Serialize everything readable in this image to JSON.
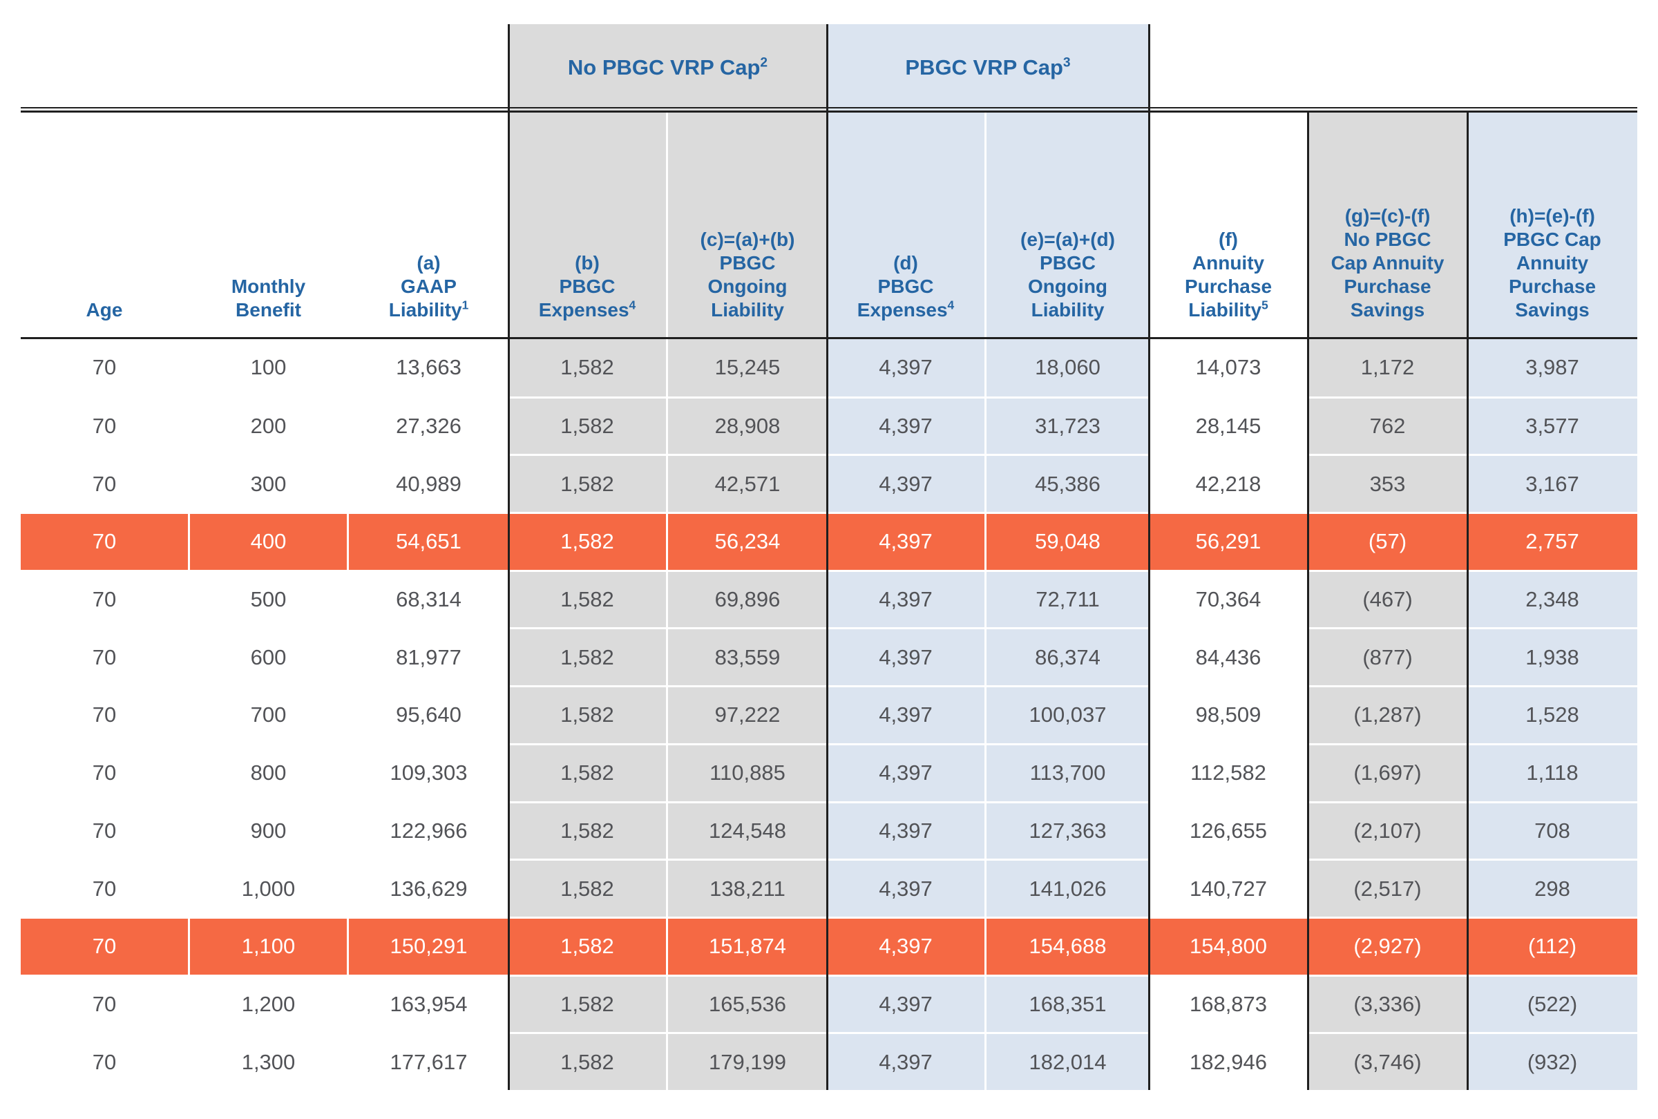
{
  "table": {
    "group_headers": [
      {
        "label": "No PBGC VRP Cap",
        "sup": "2"
      },
      {
        "label": "PBGC VRP Cap",
        "sup": "3"
      }
    ],
    "columns": [
      {
        "id": "age",
        "band": "plain",
        "lines": [
          "Age"
        ],
        "sup": ""
      },
      {
        "id": "monthly-benefit",
        "band": "plain",
        "lines": [
          "Monthly",
          "Benefit"
        ],
        "sup": ""
      },
      {
        "id": "gaap-liability",
        "band": "plain",
        "lines": [
          "(a)",
          "GAAP",
          "Liability"
        ],
        "sup": "1"
      },
      {
        "id": "pbgc-expenses-no-cap",
        "band": "gray",
        "lines": [
          "(b)",
          "PBGC",
          "Expenses"
        ],
        "sup": "4"
      },
      {
        "id": "pbgc-ongoing-liab-no-cap",
        "band": "gray",
        "lines": [
          "(c)=(a)+(b)",
          "PBGC",
          "Ongoing",
          "Liability"
        ],
        "sup": ""
      },
      {
        "id": "pbgc-expenses-cap",
        "band": "blue",
        "lines": [
          "(d)",
          "PBGC",
          "Expenses"
        ],
        "sup": "4"
      },
      {
        "id": "pbgc-ongoing-liab-cap",
        "band": "blue",
        "lines": [
          "(e)=(a)+(d)",
          "PBGC",
          "Ongoing",
          "Liability"
        ],
        "sup": ""
      },
      {
        "id": "annuity-purchase-liability",
        "band": "plain",
        "lines": [
          "(f)",
          "Annuity",
          "Purchase",
          "Liability"
        ],
        "sup": "5"
      },
      {
        "id": "no-cap-annuity-savings",
        "band": "gray",
        "lines": [
          "(g)=(c)-(f)",
          "No PBGC",
          "Cap Annuity",
          "Purchase",
          "Savings"
        ],
        "sup": ""
      },
      {
        "id": "cap-annuity-savings",
        "band": "blue",
        "lines": [
          "(h)=(e)-(f)",
          "PBGC Cap",
          "Annuity",
          "Purchase",
          "Savings"
        ],
        "sup": ""
      }
    ],
    "rows": [
      [
        "70",
        "100",
        "13,663",
        "1,582",
        "15,245",
        "4,397",
        "18,060",
        "14,073",
        "1,172",
        "3,987"
      ],
      [
        "70",
        "200",
        "27,326",
        "1,582",
        "28,908",
        "4,397",
        "31,723",
        "28,145",
        "762",
        "3,577"
      ],
      [
        "70",
        "300",
        "40,989",
        "1,582",
        "42,571",
        "4,397",
        "45,386",
        "42,218",
        "353",
        "3,167"
      ],
      [
        "70",
        "400",
        "54,651",
        "1,582",
        "56,234",
        "4,397",
        "59,048",
        "56,291",
        "(57)",
        "2,757"
      ],
      [
        "70",
        "500",
        "68,314",
        "1,582",
        "69,896",
        "4,397",
        "72,711",
        "70,364",
        "(467)",
        "2,348"
      ],
      [
        "70",
        "600",
        "81,977",
        "1,582",
        "83,559",
        "4,397",
        "86,374",
        "84,436",
        "(877)",
        "1,938"
      ],
      [
        "70",
        "700",
        "95,640",
        "1,582",
        "97,222",
        "4,397",
        "100,037",
        "98,509",
        "(1,287)",
        "1,528"
      ],
      [
        "70",
        "800",
        "109,303",
        "1,582",
        "110,885",
        "4,397",
        "113,700",
        "112,582",
        "(1,697)",
        "1,118"
      ],
      [
        "70",
        "900",
        "122,966",
        "1,582",
        "124,548",
        "4,397",
        "127,363",
        "126,655",
        "(2,107)",
        "708"
      ],
      [
        "70",
        "1,000",
        "136,629",
        "1,582",
        "138,211",
        "4,397",
        "141,026",
        "140,727",
        "(2,517)",
        "298"
      ],
      [
        "70",
        "1,100",
        "150,291",
        "1,582",
        "151,874",
        "4,397",
        "154,688",
        "154,800",
        "(2,927)",
        "(112)"
      ],
      [
        "70",
        "1,200",
        "163,954",
        "1,582",
        "165,536",
        "4,397",
        "168,351",
        "168,873",
        "(3,336)",
        "(522)"
      ],
      [
        "70",
        "1,300",
        "177,617",
        "1,582",
        "179,199",
        "4,397",
        "182,014",
        "182,946",
        "(3,746)",
        "(932)"
      ]
    ],
    "highlighted_row_indexes": [
      3,
      10
    ]
  },
  "colors": {
    "header_blue": "#2565A3",
    "gray_band": "#DBDBDB",
    "blue_band": "#DBE4F0",
    "highlight_orange": "#F56944",
    "rule_line": "#1F1F1F",
    "data_text": "#525357"
  }
}
